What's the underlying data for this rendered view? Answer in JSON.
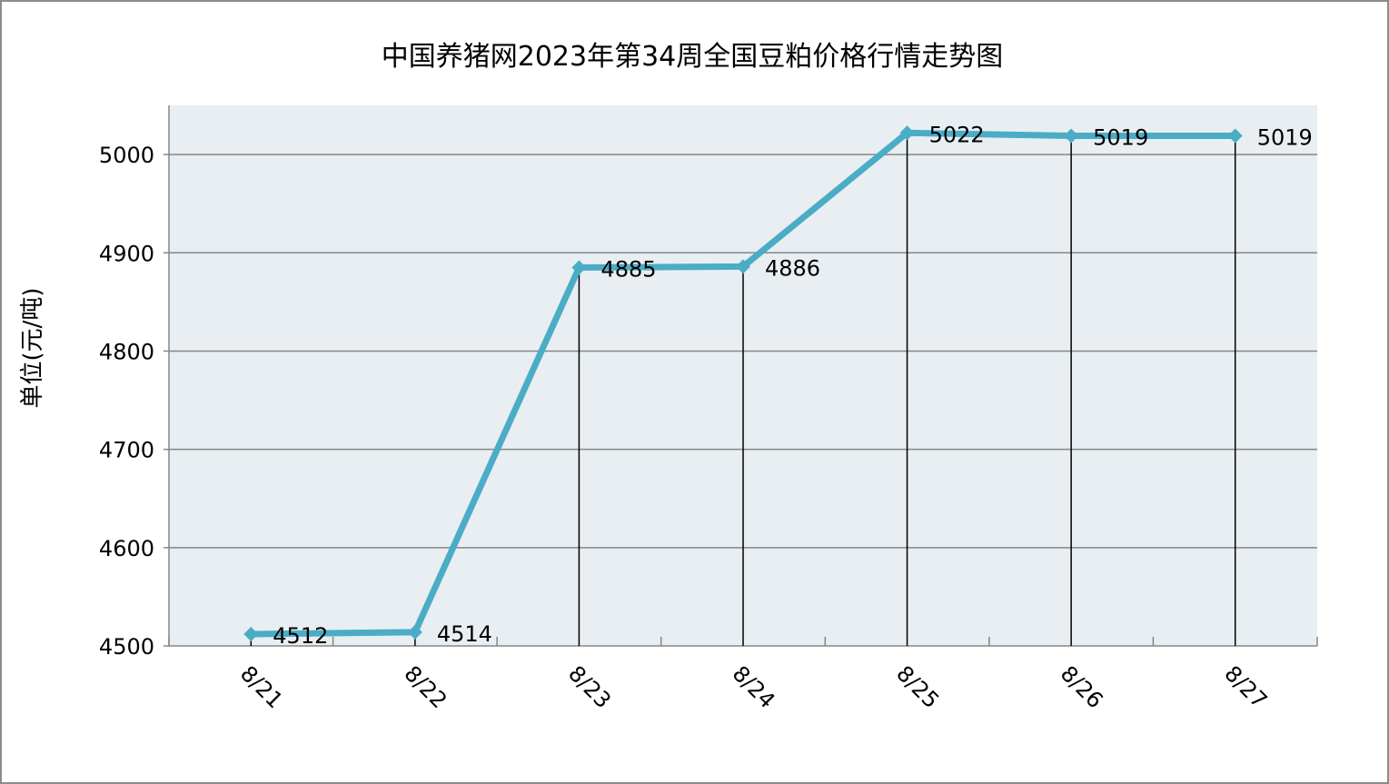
{
  "chart_data": {
    "type": "line",
    "title": "中国养猪网2023年第34周全国豆粕价格行情走势图",
    "ylabel": "单位(元/吨)",
    "xlabel": "",
    "categories": [
      "8/21",
      "8/22",
      "8/23",
      "8/24",
      "8/25",
      "8/26",
      "8/27"
    ],
    "values": [
      4512,
      4514,
      4885,
      4886,
      5022,
      5019,
      5019
    ],
    "data_labels": [
      "4512",
      "4514",
      "4885",
      "4886",
      "5022",
      "5019",
      "5019"
    ],
    "y_ticks": [
      4500,
      4600,
      4700,
      4800,
      4900,
      5000
    ],
    "y_tick_labels": [
      "4500",
      "4600",
      "4700",
      "4800",
      "4900",
      "5000"
    ],
    "ylim": [
      4500,
      5050
    ],
    "grid": true,
    "legend": "none",
    "colors": {
      "line": "#4bacc6",
      "plot_background": "#e8eef2",
      "gridline": "#868686",
      "drop_line": "#000000"
    }
  }
}
